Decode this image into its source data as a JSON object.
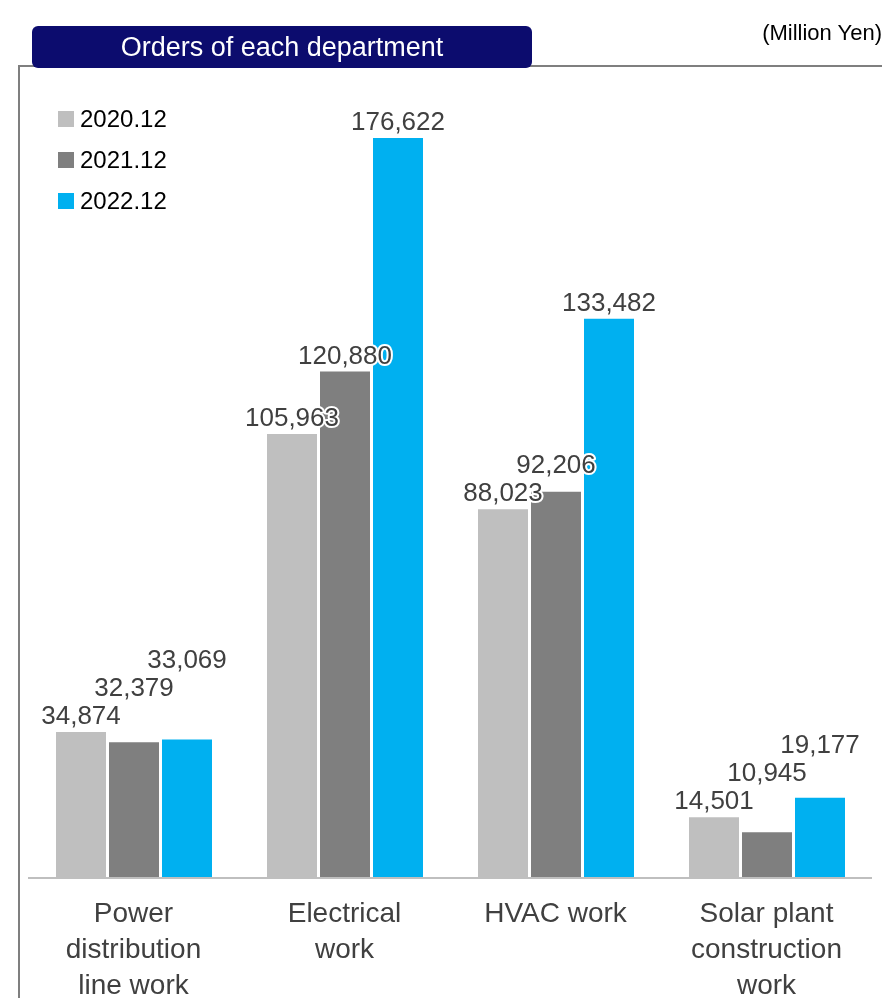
{
  "chart_data": {
    "type": "bar",
    "title": "Orders of each department",
    "annotations": [
      "(Million Yen)"
    ],
    "categories": [
      "Power distribution line work",
      "Electrical work",
      "HVAC work",
      "Solar plant construction work"
    ],
    "series": [
      {
        "name": "2020.12",
        "color": "#bfbfbf",
        "values": [
          34874,
          105963,
          88023,
          14501
        ],
        "value_labels": [
          "34,874",
          "105,963",
          "88,023",
          "14,501"
        ]
      },
      {
        "name": "2021.12",
        "color": "#7f7f7f",
        "values": [
          32379,
          120880,
          92206,
          10945
        ],
        "value_labels": [
          "32,379",
          "120,880",
          "92,206",
          "10,945"
        ]
      },
      {
        "name": "2022.12",
        "color": "#00b0f0",
        "values": [
          33069,
          176622,
          133482,
          19177
        ],
        "value_labels": [
          "33,069",
          "176,622",
          "133,482",
          "19,177"
        ]
      }
    ],
    "legend": "top left"
  }
}
